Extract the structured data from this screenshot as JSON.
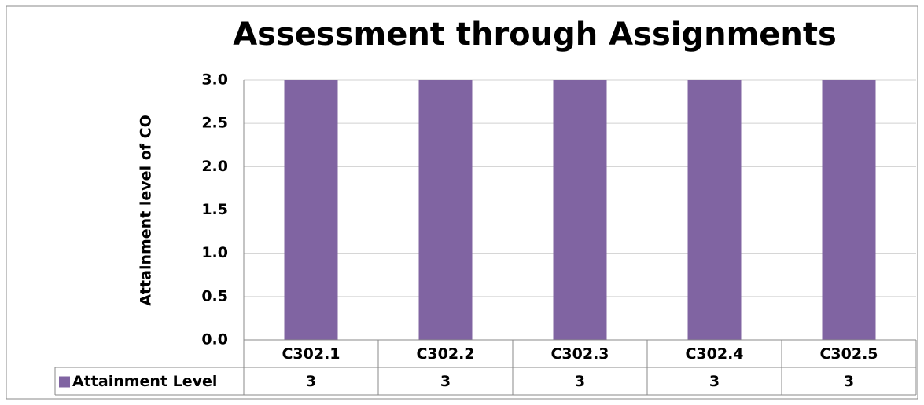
{
  "chart_data": {
    "type": "bar",
    "title": "Assessment through Assignments",
    "ylabel": "Attainment level of CO",
    "categories": [
      "C302.1",
      "C302.2",
      "C302.3",
      "C302.4",
      "C302.5"
    ],
    "series": [
      {
        "name": "Attainment Level",
        "color": "#8064a2",
        "values": [
          3,
          3,
          3,
          3,
          3
        ]
      }
    ],
    "ylim": [
      0,
      3
    ],
    "yticks": [
      {
        "value": 0,
        "label": "0.0"
      },
      0.5,
      {
        "value": 1,
        "label": "1.0"
      },
      1.5,
      {
        "value": 2,
        "label": "2.0"
      },
      2.5,
      {
        "value": 3,
        "label": "3.0"
      }
    ],
    "grid": true,
    "data_table": true
  }
}
